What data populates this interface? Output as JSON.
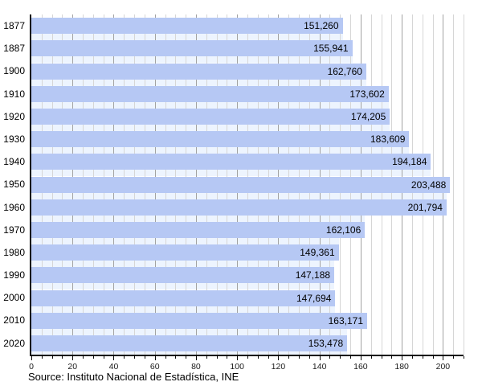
{
  "chart_data": {
    "type": "bar",
    "orientation": "horizontal",
    "title": "",
    "categories": [
      "1877",
      "1887",
      "1900",
      "1910",
      "1920",
      "1930",
      "1940",
      "1950",
      "1960",
      "1970",
      "1980",
      "1990",
      "2000",
      "2010",
      "2020"
    ],
    "values": [
      151260,
      155941,
      162760,
      173602,
      174205,
      183609,
      194184,
      203488,
      201794,
      162106,
      149361,
      147188,
      147694,
      163171,
      153478
    ],
    "value_labels": [
      "151,260",
      "155,941",
      "162,760",
      "173,602",
      "174,205",
      "183,609",
      "194,184",
      "203,488",
      "201,794",
      "162,106",
      "149,361",
      "147,188",
      "147,694",
      "163,171",
      "153,478"
    ],
    "x_axis": {
      "unit": "thousands",
      "max": 210,
      "minor_step": 5,
      "major_step": 20,
      "tick_labels": [
        "0",
        "20",
        "40",
        "60",
        "80",
        "100",
        "120",
        "140",
        "160",
        "180",
        "200"
      ]
    },
    "grid": "on",
    "legend": "none",
    "source": "Source: Instituto Nacional de Estadística, INE",
    "colors": {
      "bar": "#b6c8f4",
      "grid_minor": "#d6d6d6",
      "grid_major": "#a3a3a3",
      "gap_tint": "#edf4fe",
      "axis": "#0a0a0a",
      "text": "#000000"
    }
  }
}
